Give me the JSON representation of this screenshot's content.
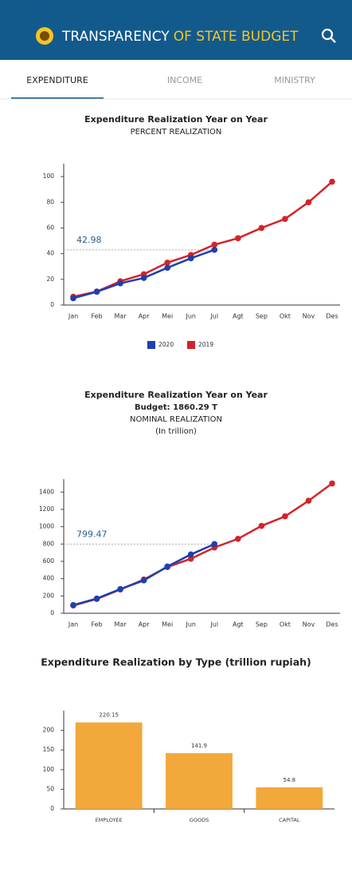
{
  "header": {
    "title_part1": "TRANSPARENCY",
    "title_part2": "OF STATE BUDGET"
  },
  "tabs": {
    "items": [
      "EXPENDITURE",
      "INCOME",
      "MINISTRY"
    ],
    "active": 0
  },
  "chart_data": [
    {
      "type": "line",
      "title": "Expenditure Realization Year on Year",
      "subtitle": [
        "PERCENT REALIZATION"
      ],
      "categories": [
        "Jan",
        "Feb",
        "Mar",
        "Apr",
        "Mei",
        "Jun",
        "Jul",
        "Agt",
        "Sep",
        "Okt",
        "Nov",
        "Des"
      ],
      "series": [
        {
          "name": "2020",
          "color": "#1f3fae",
          "values": [
            5.3,
            10.3,
            16.9,
            21.1,
            29.0,
            36.4,
            42.98,
            null,
            null,
            null,
            null,
            null
          ]
        },
        {
          "name": "2019",
          "color": "#d4232b",
          "values": [
            6.5,
            10.5,
            18.5,
            24,
            33,
            39,
            47,
            52,
            60,
            67,
            80,
            96
          ]
        }
      ],
      "ylim": [
        0,
        110
      ],
      "yticks": [
        0,
        20,
        40,
        60,
        80,
        100
      ],
      "annotation_series": 0,
      "annotation_index": 6,
      "legend": "bottom"
    },
    {
      "type": "line",
      "title": "Expenditure Realization Year on Year",
      "subtitle": [
        "Budget: 1860.29 T",
        "NOMINAL REALIZATION",
        "(In trillion)"
      ],
      "categories": [
        "Jan",
        "Feb",
        "Mar",
        "Apr",
        "Mei",
        "Jun",
        "Jul",
        "Agt",
        "Sep",
        "Okt",
        "Nov",
        "Des"
      ],
      "series": [
        {
          "name": "2020",
          "color": "#1f3fae",
          "values": [
            95,
            170,
            280,
            380,
            540,
            680,
            799.47,
            null,
            null,
            null,
            null,
            null
          ]
        },
        {
          "name": "2019",
          "color": "#d4232b",
          "values": [
            90,
            165,
            275,
            390,
            535,
            630,
            760,
            860,
            1010,
            1120,
            1300,
            1500
          ]
        }
      ],
      "ylim": [
        0,
        1550
      ],
      "yticks": [
        0,
        200,
        400,
        600,
        800,
        1000,
        1200,
        1400
      ],
      "annotation_series": 0,
      "annotation_index": 6
    },
    {
      "type": "bar",
      "title": "Expenditure Realization by Type (trillion rupiah)",
      "categories": [
        "EMPLOYEE",
        "GOODS",
        "CAPITAL"
      ],
      "values": [
        220.15,
        141.9,
        54.8
      ],
      "color": "#f2a83a",
      "ylim": [
        0,
        250
      ],
      "yticks": [
        0,
        50,
        100,
        150,
        200
      ]
    }
  ]
}
